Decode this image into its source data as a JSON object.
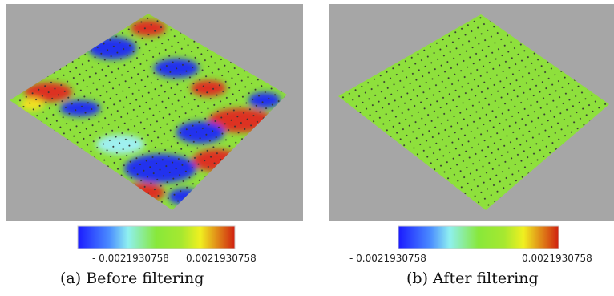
{
  "panels": [
    {
      "colorbar_min_label": "- 0.0021930758",
      "colorbar_max_label": "0.0021930758",
      "caption": "(a) Before filtering"
    },
    {
      "colorbar_min_label": "- 0.0021930758",
      "colorbar_max_label": "0.0021930758",
      "caption": "(b) After filtering"
    }
  ]
}
